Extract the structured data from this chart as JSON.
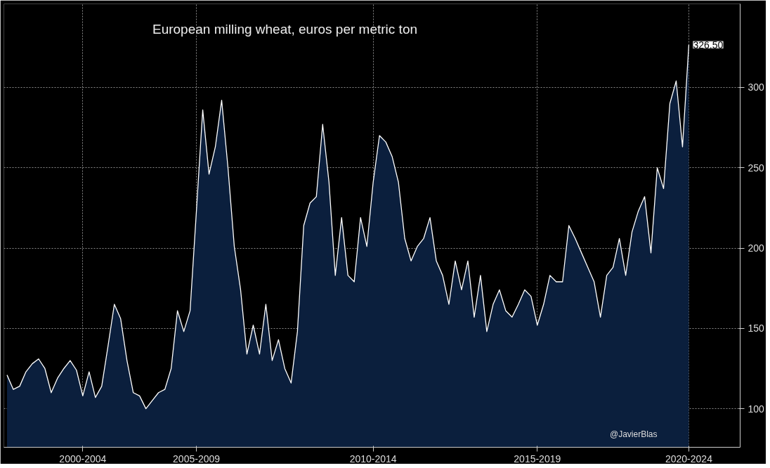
{
  "chart_data": {
    "type": "area",
    "title": "European milling wheat, euros per metric ton",
    "categories": [
      null,
      null,
      null,
      null,
      null,
      null,
      null,
      null,
      null,
      null,
      null,
      null,
      "2000-2004",
      null,
      null,
      null,
      null,
      null,
      null,
      null,
      null,
      null,
      null,
      null,
      null,
      null,
      null,
      null,
      null,
      null,
      "2005-2009",
      null,
      null,
      null,
      null,
      null,
      null,
      null,
      null,
      null,
      null,
      null,
      null,
      null,
      null,
      null,
      null,
      null,
      null,
      null,
      null,
      null,
      null,
      null,
      null,
      null,
      null,
      null,
      "2010-2014",
      null,
      null,
      null,
      null,
      null,
      null,
      null,
      null,
      null,
      null,
      null,
      null,
      null,
      null,
      null,
      null,
      null,
      null,
      null,
      null,
      null,
      null,
      null,
      null,
      null,
      "2015-2019",
      null,
      null,
      null,
      null,
      null,
      null,
      null,
      null,
      null,
      null,
      null,
      null,
      null,
      null,
      null,
      null,
      null,
      null,
      null,
      null,
      null,
      null,
      null,
      "2020-2024"
    ],
    "series": [
      {
        "color": "#0b1f3d",
        "values": [
          121,
          112,
          114,
          123,
          128,
          131,
          125,
          110,
          119,
          125,
          130,
          124,
          108,
          123,
          107,
          114,
          139,
          165,
          156,
          130,
          110,
          108,
          100,
          105,
          110,
          112,
          125,
          161,
          148,
          161,
          223,
          286,
          246,
          263,
          292,
          250,
          201,
          174,
          134,
          152,
          134,
          165,
          130,
          143,
          125,
          116,
          148,
          214,
          228,
          232,
          277,
          241,
          183,
          219,
          183,
          179,
          219,
          201,
          241,
          270,
          266,
          257,
          241,
          206,
          192,
          201,
          206,
          219,
          192,
          183,
          165,
          192,
          174,
          192,
          157,
          183,
          148,
          165,
          174,
          161,
          157,
          165,
          174,
          170,
          152,
          165,
          183,
          179,
          179,
          214,
          206,
          197,
          188,
          179,
          157,
          183,
          188,
          206,
          183,
          210,
          223,
          232,
          197,
          250,
          237,
          290,
          304,
          263,
          326.5
        ]
      }
    ],
    "ylim": [
      76,
      352
    ],
    "yticks": [
      100,
      150,
      200,
      250,
      300
    ],
    "grid": true,
    "annotations": [
      {
        "text": "326.50",
        "x": "2020-2024",
        "y": 326.5
      },
      "@JavierBlas"
    ]
  }
}
